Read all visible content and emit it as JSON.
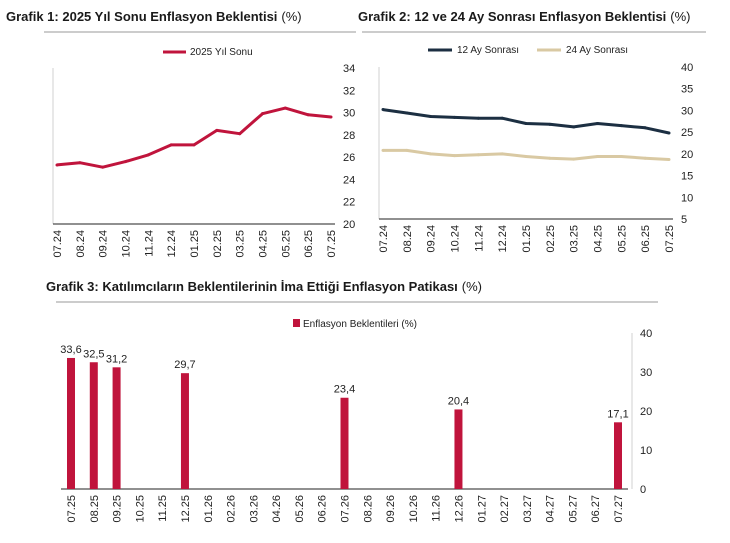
{
  "chart_data": [
    {
      "type": "line",
      "title": "Grafik 1: 2025 Yıl Sonu Enflasyon Beklentisi",
      "title_unit": "(%)",
      "categories": [
        "07.24",
        "08.24",
        "09.24",
        "10.24",
        "11.24",
        "12.24",
        "01.25",
        "02.25",
        "03.25",
        "04.25",
        "05.25",
        "06.25",
        "07.25"
      ],
      "series": [
        {
          "name": "2025 Yıl Sonu",
          "color": "#c0143c",
          "values": [
            25.3,
            25.5,
            25.1,
            25.6,
            26.2,
            27.1,
            27.1,
            28.4,
            28.1,
            29.9,
            30.4,
            29.8,
            29.6
          ]
        }
      ],
      "ylim": [
        20,
        34
      ],
      "yticks": [
        "20",
        "22",
        "24",
        "26",
        "28",
        "30",
        "32",
        "34"
      ],
      "yaxis_side": "right",
      "grid": false,
      "legend": "top"
    },
    {
      "type": "line",
      "title": "Grafik 2: 12 ve 24 Ay Sonrası Enflasyon Beklentisi",
      "title_unit": "(%)",
      "categories": [
        "07.24",
        "08.24",
        "09.24",
        "10.24",
        "11.24",
        "12.24",
        "01.25",
        "02.25",
        "03.25",
        "04.25",
        "05.25",
        "06.25",
        "07.25"
      ],
      "series": [
        {
          "name": "12 Ay Sonrası",
          "color": "#1c2f42",
          "values": [
            30.2,
            29.4,
            28.6,
            28.4,
            28.2,
            28.2,
            27.0,
            26.8,
            26.2,
            27.0,
            26.5,
            26.0,
            24.8
          ]
        },
        {
          "name": "24 Ay Sonrası",
          "color": "#d9c9a3",
          "values": [
            20.8,
            20.8,
            20.0,
            19.6,
            19.8,
            20.0,
            19.4,
            19.0,
            18.8,
            19.4,
            19.4,
            19.0,
            18.7
          ]
        }
      ],
      "ylim": [
        5,
        40
      ],
      "yticks": [
        "5",
        "10",
        "15",
        "20",
        "25",
        "30",
        "35",
        "40"
      ],
      "yaxis_side": "right",
      "grid": false,
      "legend": "top"
    },
    {
      "type": "bar",
      "title": "Grafik 3: Katılımcıların Beklentilerinin İma Ettiği Enflasyon Patikası",
      "title_unit": "(%)",
      "categories": [
        "07.25",
        "08.25",
        "09.25",
        "10.25",
        "11.25",
        "12.25",
        "01.26",
        "02.26",
        "03.26",
        "04.26",
        "05.26",
        "06.26",
        "07.26",
        "08.26",
        "09.26",
        "10.26",
        "11.26",
        "12.26",
        "01.27",
        "02.27",
        "03.27",
        "04.27",
        "05.27",
        "06.27",
        "07.27"
      ],
      "series": [
        {
          "name": "Enflasyon Beklentileri (%)",
          "color": "#c0143c",
          "values": [
            33.6,
            32.5,
            31.2,
            null,
            null,
            29.7,
            null,
            null,
            null,
            null,
            null,
            null,
            23.4,
            null,
            null,
            null,
            null,
            20.4,
            null,
            null,
            null,
            null,
            null,
            null,
            17.1
          ],
          "labels": [
            "33,6",
            "32,5",
            "31,2",
            "",
            "",
            "29,7",
            "",
            "",
            "",
            "",
            "",
            "",
            "23,4",
            "",
            "",
            "",
            "",
            "20,4",
            "",
            "",
            "",
            "",
            "",
            "",
            "17,1"
          ]
        }
      ],
      "ylim": [
        0,
        40
      ],
      "yticks": [
        "0",
        "10",
        "20",
        "30",
        "40"
      ],
      "yaxis_side": "right",
      "grid": false,
      "legend": "top"
    }
  ]
}
